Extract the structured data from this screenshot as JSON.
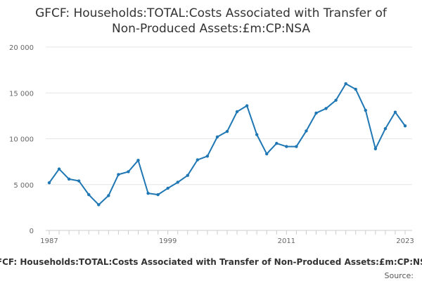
{
  "chart_data": {
    "type": "line",
    "title_lines": [
      "GFCF: Households:TOTAL:Costs Associated with Transfer of",
      "Non-Produced Assets:£m:CP:NSA"
    ],
    "legend_label": "GFCF: Households:TOTAL:Costs Associated with Transfer of Non-Produced Assets:£m:CP:NSA",
    "source_label": "Source:",
    "x": [
      1987,
      1988,
      1989,
      1990,
      1991,
      1992,
      1993,
      1994,
      1995,
      1996,
      1997,
      1998,
      1999,
      2000,
      2001,
      2002,
      2003,
      2004,
      2005,
      2006,
      2007,
      2008,
      2009,
      2010,
      2011,
      2012,
      2013,
      2014,
      2015,
      2016,
      2017,
      2018,
      2019,
      2020,
      2021,
      2022,
      2023
    ],
    "series": [
      {
        "values": [
          5200,
          6700,
          5600,
          5400,
          3900,
          2800,
          3800,
          6100,
          6400,
          7650,
          4050,
          3900,
          4600,
          5250,
          6000,
          7700,
          8100,
          10200,
          10800,
          12950,
          13600,
          10450,
          8350,
          9500,
          9150,
          9150,
          10850,
          12800,
          13300,
          14200,
          16000,
          15400,
          13100,
          8900,
          11100,
          12900,
          11400
        ],
        "color": "#1f77b4"
      }
    ],
    "xticks": [
      "1987",
      "1999",
      "2011",
      "2023"
    ],
    "yticks": [
      "0",
      "5 000",
      "10 000",
      "15 000",
      "20 000"
    ],
    "xlim": [
      1987,
      2023
    ],
    "ylim": [
      0,
      20000
    ],
    "grid": true,
    "legend_position": "bottom"
  }
}
